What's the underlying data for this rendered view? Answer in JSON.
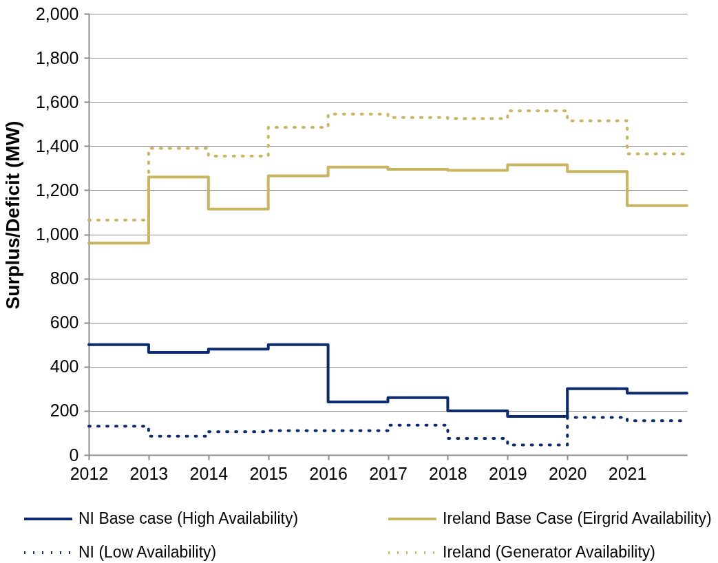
{
  "chart_data": {
    "type": "step",
    "ylabel": "Surplus/Deficit (MW)",
    "x": [
      2012,
      2013,
      2014,
      2015,
      2016,
      2017,
      2018,
      2019,
      2020,
      2021,
      2022
    ],
    "xlim": [
      2012,
      2022
    ],
    "xticks": [
      2012,
      2013,
      2014,
      2015,
      2016,
      2017,
      2018,
      2019,
      2020,
      2021
    ],
    "ylim": [
      0,
      2000
    ],
    "yticks": [
      0,
      200,
      400,
      600,
      800,
      {
        "value": 1000,
        "label": "1,000"
      },
      {
        "value": 1200,
        "label": "1,200"
      },
      {
        "value": 1400,
        "label": "1,400"
      },
      {
        "value": 1600,
        "label": "1,600"
      },
      {
        "value": 1800,
        "label": "1,800"
      },
      {
        "value": 2000,
        "label": "2,000"
      }
    ],
    "grid": "y",
    "legend": "bottom",
    "series": [
      {
        "name": "NI Base case (High Availability)",
        "color": "#0b2a6f",
        "line_style": "solid",
        "values": [
          500,
          465,
          480,
          500,
          240,
          260,
          200,
          175,
          300,
          280,
          280
        ]
      },
      {
        "name": "Ireland Base Case (Eirgrid Availability)",
        "color": "#c9b462",
        "line_style": "solid",
        "values": [
          960,
          1260,
          1115,
          1265,
          1305,
          1295,
          1290,
          1315,
          1285,
          1130,
          1130
        ]
      },
      {
        "name": "NI (Low Availability)",
        "color": "#0b2a6f",
        "line_style": "dotted",
        "values": [
          130,
          85,
          105,
          110,
          110,
          135,
          75,
          45,
          170,
          155,
          155
        ]
      },
      {
        "name": "Ireland (Generator Availability)",
        "color": "#c9b462",
        "line_style": "dotted",
        "values": [
          1065,
          1390,
          1355,
          1485,
          1545,
          1530,
          1525,
          1560,
          1515,
          1365,
          1365
        ]
      }
    ]
  }
}
